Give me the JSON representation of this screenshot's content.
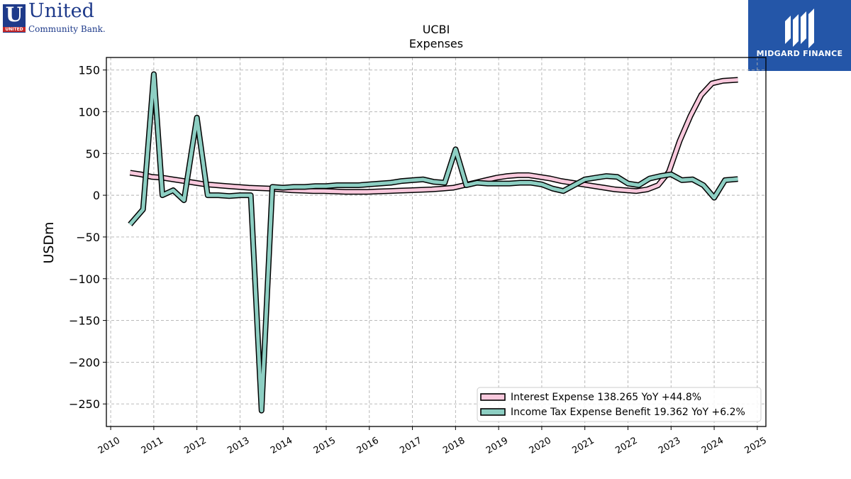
{
  "branding": {
    "left_logo": {
      "mark": "U",
      "mark_sub": "UNITED",
      "name": "United",
      "tagline": "Community Bank."
    },
    "right_logo": {
      "text": "MIDGARD FINANCE"
    }
  },
  "colors": {
    "interest": "#f9c9dd",
    "tax": "#8dcfc3",
    "outline": "#000000",
    "grid": "#b0b0b0"
  },
  "chart_data": {
    "type": "line",
    "title": "UCBI",
    "subtitle": "Expenses",
    "xlabel": "",
    "ylabel": "USDm",
    "xlim": [
      2009.9,
      2025.2
    ],
    "ylim": [
      -277,
      165
    ],
    "xticks": [
      2010,
      2011,
      2012,
      2013,
      2014,
      2015,
      2016,
      2017,
      2018,
      2019,
      2020,
      2021,
      2022,
      2023,
      2024,
      2025
    ],
    "yticks": [
      150,
      100,
      50,
      0,
      -50,
      -100,
      -150,
      -200,
      -250
    ],
    "ytick_labels": [
      "150",
      "100",
      "50",
      "0",
      "−50",
      "−100",
      "−150",
      "−200",
      "−250"
    ],
    "grid": true,
    "legend_position": "lower-right",
    "series": [
      {
        "name": "Interest Expense",
        "legend": "Interest Expense  138.265 YoY +44.8%",
        "color": "#f9c9dd",
        "x": [
          2010.45,
          2010.7,
          2010.95,
          2011.2,
          2011.45,
          2011.7,
          2011.95,
          2012.2,
          2012.45,
          2012.7,
          2012.95,
          2013.2,
          2013.45,
          2013.7,
          2013.95,
          2014.2,
          2014.45,
          2014.7,
          2014.95,
          2015.2,
          2015.45,
          2015.7,
          2015.95,
          2016.2,
          2016.45,
          2016.7,
          2016.95,
          2017.2,
          2017.45,
          2017.7,
          2017.95,
          2018.2,
          2018.45,
          2018.7,
          2018.95,
          2019.2,
          2019.45,
          2019.7,
          2019.95,
          2020.2,
          2020.45,
          2020.7,
          2020.95,
          2021.2,
          2021.45,
          2021.7,
          2021.95,
          2022.2,
          2022.45,
          2022.7,
          2022.95,
          2023.2,
          2023.45,
          2023.7,
          2023.95,
          2024.2,
          2024.55
        ],
        "y": [
          27,
          25,
          22,
          21,
          19,
          17,
          15,
          13,
          12,
          11,
          10,
          9,
          8.5,
          8,
          7,
          6,
          5.5,
          5,
          5,
          4.5,
          4,
          4,
          4,
          4.5,
          5,
          5.5,
          6,
          6.5,
          7,
          8,
          9,
          12,
          15,
          18,
          21,
          23,
          24,
          24,
          22,
          20,
          17,
          15,
          13,
          11,
          9,
          7,
          6,
          5,
          7,
          12,
          28,
          65,
          95,
          120,
          134,
          137,
          138.265
        ]
      },
      {
        "name": "Income Tax Expense Benefit",
        "legend": "Income Tax Expense Benefit  19.362 YoY +6.2%",
        "color": "#8dcfc3",
        "x": [
          2010.45,
          2010.75,
          2011.0,
          2011.2,
          2011.45,
          2011.7,
          2012.0,
          2012.25,
          2012.5,
          2012.75,
          2013.0,
          2013.25,
          2013.5,
          2013.75,
          2014.0,
          2014.25,
          2014.5,
          2014.75,
          2015.0,
          2015.25,
          2015.5,
          2015.75,
          2016.0,
          2016.25,
          2016.5,
          2016.75,
          2017.0,
          2017.25,
          2017.5,
          2017.75,
          2018.0,
          2018.25,
          2018.5,
          2018.75,
          2019.0,
          2019.25,
          2019.5,
          2019.75,
          2020.0,
          2020.25,
          2020.5,
          2020.75,
          2021.0,
          2021.25,
          2021.5,
          2021.75,
          2022.0,
          2022.25,
          2022.5,
          2022.75,
          2023.0,
          2023.25,
          2023.5,
          2023.75,
          2024.0,
          2024.25,
          2024.55
        ],
        "y": [
          -35,
          -17,
          145,
          0,
          6,
          -6,
          93,
          0,
          0,
          -1,
          0,
          0,
          -258,
          10,
          9,
          10,
          10,
          11,
          11,
          12,
          12,
          12,
          13,
          14,
          15,
          17,
          18,
          19,
          16,
          15,
          55,
          12,
          15,
          14,
          14,
          14,
          15,
          15,
          13,
          8,
          5,
          12,
          19,
          21,
          23,
          22,
          14,
          12,
          20,
          23,
          25,
          18,
          19,
          12,
          -3,
          18,
          19.362
        ]
      }
    ]
  }
}
